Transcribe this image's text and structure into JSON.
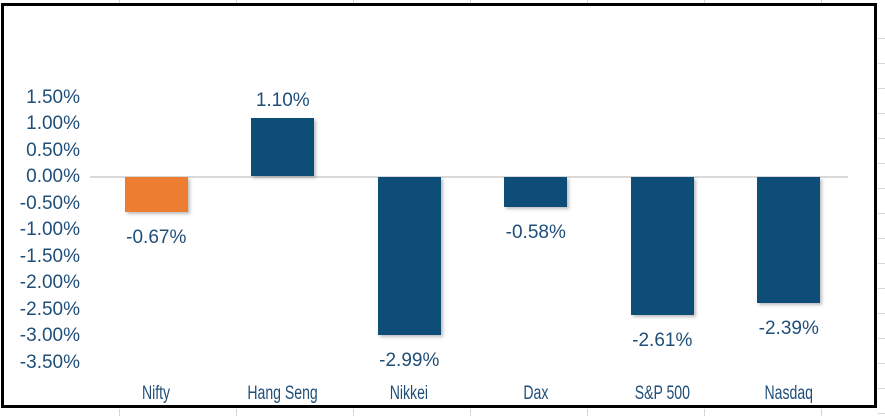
{
  "chart_data": {
    "type": "bar",
    "title": "",
    "xlabel": "",
    "ylabel": "",
    "categories": [
      "Nifty",
      "Hang Seng",
      "Nikkei",
      "Dax",
      "S&P 500",
      "Nasdaq"
    ],
    "values": [
      -0.67,
      1.1,
      -2.99,
      -0.58,
      -2.61,
      -2.39
    ],
    "labels": [
      "-0.67%",
      "1.10%",
      "-2.99%",
      "-0.58%",
      "-2.61%",
      "-2.39%"
    ],
    "ytick_labels": [
      "1.50%",
      "1.00%",
      "0.50%",
      "0.00%",
      "-0.50%",
      "-1.00%",
      "-1.50%",
      "-2.00%",
      "-2.50%",
      "-3.00%",
      "-3.50%"
    ],
    "ylim": [
      -3.5,
      1.5
    ],
    "ytick_step": 0.5,
    "legend": "none",
    "gridlines": "horizontal zero line only",
    "colors": {
      "bar_default": "#0E4D78",
      "bar_highlight": "#ED7D31",
      "text": "#1F4E79",
      "zero_line": "#D9D9D9",
      "chart_border": "#000000",
      "background": "#FFFFFF"
    },
    "bar_colors": [
      "#ED7D31",
      "#0E4D78",
      "#0E4D78",
      "#0E4D78",
      "#0E4D78",
      "#0E4D78"
    ]
  }
}
